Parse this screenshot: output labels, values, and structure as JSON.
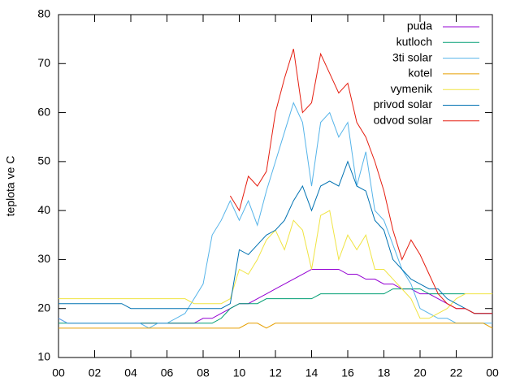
{
  "chart_data": {
    "type": "line",
    "ylabel": "teplota ve C",
    "xlim": [
      0,
      24
    ],
    "ylim": [
      10,
      80
    ],
    "xticks": [
      {
        "value": 0,
        "label": "00"
      },
      {
        "value": 2,
        "label": "02"
      },
      {
        "value": 4,
        "label": "04"
      },
      {
        "value": 6,
        "label": "06"
      },
      {
        "value": 8,
        "label": "08"
      },
      10,
      12,
      14,
      16,
      18,
      20,
      22,
      {
        "value": 24,
        "label": "00"
      }
    ],
    "yticks": [
      10,
      20,
      30,
      40,
      50,
      60,
      70,
      80
    ],
    "legend": "top-right",
    "x": [
      0,
      0.5,
      1,
      1.5,
      2,
      2.5,
      3,
      3.5,
      4,
      4.5,
      5,
      5.5,
      6,
      6.5,
      7,
      7.5,
      8,
      8.5,
      9,
      9.5,
      10,
      10.5,
      11,
      11.5,
      12,
      12.5,
      13,
      13.5,
      14,
      14.5,
      15,
      15.5,
      16,
      16.5,
      17,
      17.5,
      18,
      18.5,
      19,
      19.5,
      20,
      20.5,
      21,
      21.5,
      22,
      22.5,
      23,
      23.5,
      24
    ],
    "series": [
      {
        "name": "puda",
        "color": "#9400d3",
        "values": [
          18,
          17,
          17,
          17,
          17,
          17,
          17,
          17,
          17,
          17,
          17,
          17,
          17,
          17,
          17,
          17,
          18,
          18,
          19,
          20,
          21,
          21,
          22,
          23,
          24,
          25,
          26,
          27,
          28,
          28,
          28,
          28,
          27,
          27,
          26,
          26,
          25,
          25,
          24,
          24,
          23,
          23,
          22,
          21,
          20,
          20,
          19,
          19,
          19
        ]
      },
      {
        "name": "kutloch",
        "color": "#009e73",
        "values": [
          17,
          17,
          17,
          17,
          17,
          17,
          17,
          17,
          17,
          17,
          17,
          17,
          17,
          17,
          17,
          17,
          17,
          17,
          18,
          20,
          21,
          21,
          21,
          22,
          22,
          22,
          22,
          22,
          22,
          23,
          23,
          23,
          23,
          23,
          23,
          23,
          23,
          24,
          24,
          24,
          24,
          23,
          23,
          23,
          23,
          23,
          null,
          null,
          null
        ]
      },
      {
        "name": "3ti solar",
        "color": "#56b4e9",
        "values": [
          18,
          17,
          17,
          17,
          17,
          17,
          17,
          17,
          17,
          17,
          16,
          17,
          17,
          18,
          19,
          22,
          25,
          35,
          38,
          42,
          38,
          42,
          37,
          44,
          50,
          56,
          62,
          58,
          45,
          58,
          60,
          55,
          58,
          45,
          52,
          40,
          38,
          33,
          28,
          25,
          20,
          19,
          18,
          18,
          17,
          17,
          17,
          17,
          17
        ]
      },
      {
        "name": "kotel",
        "color": "#e69f00",
        "values": [
          16,
          16,
          16,
          16,
          16,
          16,
          16,
          16,
          16,
          16,
          16,
          16,
          16,
          16,
          16,
          16,
          16,
          16,
          16,
          16,
          16,
          17,
          17,
          16,
          17,
          17,
          17,
          17,
          17,
          17,
          17,
          17,
          17,
          17,
          17,
          17,
          17,
          17,
          17,
          17,
          17,
          17,
          17,
          17,
          17,
          17,
          17,
          17,
          16
        ]
      },
      {
        "name": "vymenik",
        "color": "#f0e442",
        "values": [
          22,
          22,
          22,
          22,
          22,
          22,
          22,
          22,
          22,
          22,
          22,
          22,
          22,
          22,
          22,
          21,
          21,
          21,
          21,
          22,
          28,
          27,
          30,
          34,
          36,
          32,
          38,
          36,
          28,
          39,
          40,
          30,
          35,
          32,
          35,
          28,
          28,
          26,
          24,
          22,
          18,
          18,
          19,
          20,
          22,
          23,
          23,
          23,
          23
        ]
      },
      {
        "name": "privod solar",
        "color": "#0072b2",
        "values": [
          21,
          21,
          21,
          21,
          21,
          21,
          21,
          21,
          20,
          20,
          20,
          20,
          20,
          20,
          20,
          20,
          20,
          20,
          20,
          21,
          32,
          31,
          33,
          35,
          36,
          38,
          42,
          45,
          40,
          45,
          46,
          45,
          50,
          45,
          44,
          38,
          36,
          30,
          28,
          26,
          25,
          24,
          24,
          22,
          21,
          20,
          19,
          19,
          19
        ]
      },
      {
        "name": "odvod solar",
        "color": "#e51e10",
        "values": [
          null,
          null,
          null,
          null,
          null,
          null,
          null,
          null,
          null,
          null,
          null,
          null,
          null,
          null,
          null,
          null,
          null,
          null,
          null,
          43,
          40,
          47,
          45,
          48,
          60,
          67,
          73,
          60,
          62,
          72,
          68,
          64,
          66,
          58,
          55,
          50,
          44,
          36,
          30,
          34,
          31,
          27,
          23,
          21,
          20,
          20,
          19,
          19,
          19
        ]
      }
    ]
  }
}
